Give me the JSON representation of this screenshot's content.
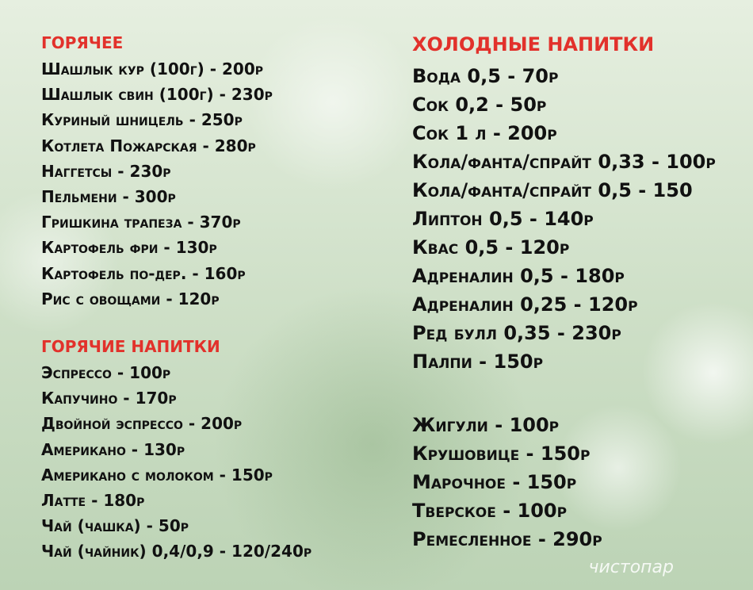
{
  "left_column": {
    "sections": [
      {
        "title": "ГОРЯЧЕЕ",
        "items": [
          "Шашлык кур (100г) - 200р",
          "Шашлык свин (100г) - 230р",
          "Куриный шницель - 250р",
          "Котлета Пожарская - 280р",
          "Наггетсы - 230р",
          "Пельмени - 300р",
          "Гришкина трапеза - 370р",
          "Картофель фри - 130р",
          "Картофель по-дер. - 160р",
          "Рис с овощами - 120р"
        ]
      },
      {
        "title": "ГОРЯЧИЕ НАПИТКИ",
        "items": [
          "Эспрессо - 100р",
          "Капучино - 170р",
          "Двойной эспрессо - 200р",
          "Американо - 130р",
          "Американо с молоком - 150р",
          "Латте - 180р",
          "Чай (чашка) - 50р",
          "Чай (чайник) 0,4/0,9 - 120/240р"
        ]
      }
    ]
  },
  "right_column": {
    "sections": [
      {
        "title": "ХОЛОДНЫЕ НАПИТКИ",
        "items": [
          "Вода 0,5 - 70р",
          "Сок 0,2 - 50р",
          "Сок 1 л - 200р",
          "Кола/фанта/спрайт 0,33 - 100р",
          "Кола/фанта/спрайт 0,5 - 150",
          "Липтон 0,5 - 140р",
          "Квас 0,5 - 120р",
          "Адреналин 0,5 - 180р",
          "Адреналин 0,25 - 120р",
          "Ред булл 0,35 - 230р",
          "Палпи - 150р"
        ]
      },
      {
        "items": [
          "Жигули - 100р",
          "Крушовице - 150р",
          "Марочное - 150р",
          "Тверское - 100р",
          "Ремесленное - 290р"
        ]
      }
    ]
  },
  "watermark": "чистопар"
}
